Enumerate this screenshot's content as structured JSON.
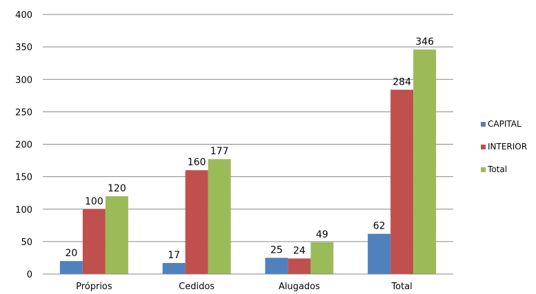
{
  "chart_data": {
    "type": "bar",
    "categories": [
      "Próprios",
      "Cedidos",
      "Alugados",
      "Total"
    ],
    "series": [
      {
        "name": "CAPITAL",
        "color": "#4F81BD",
        "values": [
          20,
          17,
          25,
          62
        ]
      },
      {
        "name": "INTERIOR",
        "color": "#C0504D",
        "values": [
          100,
          160,
          24,
          284
        ]
      },
      {
        "name": "Total",
        "color": "#9BBB59",
        "values": [
          120,
          177,
          49,
          346
        ]
      }
    ],
    "ylim": [
      0,
      400
    ],
    "yticks": [
      "0",
      "50",
      "100",
      "150",
      "200",
      "250",
      "300",
      "350",
      "400"
    ],
    "grid": true,
    "legend_position": "right",
    "title": "",
    "xlabel": "",
    "ylabel": ""
  }
}
